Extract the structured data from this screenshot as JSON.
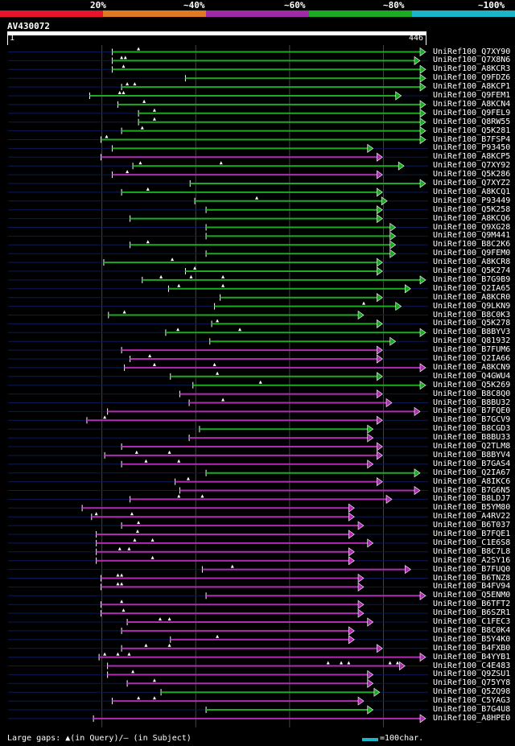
{
  "legend": [
    {
      "label": "20%",
      "color": "#e8142d"
    },
    {
      "label": "~40%",
      "color": "#e07a22"
    },
    {
      "label": "~60%",
      "color": "#9e2ca6"
    },
    {
      "label": "~80%",
      "color": "#1bab22"
    },
    {
      "label": "~100%",
      "color": "#1ab6c8"
    }
  ],
  "query": {
    "id": "AV430072",
    "start": "1",
    "end": "446",
    "length": 446
  },
  "colors": {
    "green": "#1bab22",
    "magenta": "#b02cb5",
    "trackline": "#0b1a55",
    "grid": "#444444"
  },
  "hits": [
    {
      "name": "UniRef100_Q7XY90",
      "start": 112,
      "end": 446,
      "color": "green",
      "gaps": [
        140
      ]
    },
    {
      "name": "UniRef100_Q7X8N6",
      "start": 112,
      "end": 440,
      "color": "green",
      "gaps": [
        122,
        126
      ]
    },
    {
      "name": "UniRef100_A8KCR3",
      "start": 112,
      "end": 446,
      "color": "green",
      "gaps": [
        124
      ]
    },
    {
      "name": "UniRef100_Q9FDZ6",
      "start": 190,
      "end": 446,
      "color": "green",
      "gaps": []
    },
    {
      "name": "UniRef100_A8KCP1",
      "start": 122,
      "end": 446,
      "color": "green",
      "gaps": [
        128,
        136
      ]
    },
    {
      "name": "UniRef100_Q9FEM1",
      "start": 88,
      "end": 420,
      "color": "green",
      "gaps": [
        120,
        124
      ]
    },
    {
      "name": "UniRef100_A8KCN4",
      "start": 118,
      "end": 446,
      "color": "green",
      "gaps": [
        146
      ]
    },
    {
      "name": "UniRef100_Q9FEL9",
      "start": 140,
      "end": 446,
      "color": "green",
      "gaps": [
        157
      ]
    },
    {
      "name": "UniRef100_Q8RW55",
      "start": 140,
      "end": 446,
      "color": "green",
      "gaps": [
        157
      ]
    },
    {
      "name": "UniRef100_Q5K281",
      "start": 122,
      "end": 446,
      "color": "green",
      "gaps": [
        144
      ]
    },
    {
      "name": "UniRef100_B7FSP4",
      "start": 100,
      "end": 446,
      "color": "green",
      "gaps": [
        106
      ]
    },
    {
      "name": "UniRef100_P93450",
      "start": 112,
      "end": 390,
      "color": "green",
      "gaps": []
    },
    {
      "name": "UniRef100_A8KCP5",
      "start": 100,
      "end": 400,
      "color": "magenta",
      "gaps": []
    },
    {
      "name": "UniRef100_Q7XY92",
      "start": 134,
      "end": 423,
      "color": "green",
      "gaps": [
        142,
        228
      ]
    },
    {
      "name": "UniRef100_Q5K286",
      "start": 112,
      "end": 400,
      "color": "magenta",
      "gaps": [
        128
      ]
    },
    {
      "name": "UniRef100_Q7XYZ2",
      "start": 195,
      "end": 446,
      "color": "green",
      "gaps": []
    },
    {
      "name": "UniRef100_A8KCQ1",
      "start": 122,
      "end": 400,
      "color": "green",
      "gaps": [
        150
      ]
    },
    {
      "name": "UniRef100_P93449",
      "start": 200,
      "end": 405,
      "color": "green",
      "gaps": [
        266
      ]
    },
    {
      "name": "UniRef100_Q5K258",
      "start": 212,
      "end": 400,
      "color": "green",
      "gaps": []
    },
    {
      "name": "UniRef100_A8KCQ6",
      "start": 131,
      "end": 400,
      "color": "green",
      "gaps": []
    },
    {
      "name": "UniRef100_Q9XG28",
      "start": 212,
      "end": 414,
      "color": "green",
      "gaps": []
    },
    {
      "name": "UniRef100_Q9M441",
      "start": 212,
      "end": 414,
      "color": "green",
      "gaps": []
    },
    {
      "name": "UniRef100_B8C2K6",
      "start": 131,
      "end": 414,
      "color": "green",
      "gaps": [
        150
      ]
    },
    {
      "name": "UniRef100_Q9FEM0",
      "start": 212,
      "end": 414,
      "color": "green",
      "gaps": []
    },
    {
      "name": "UniRef100_A8KCR8",
      "start": 103,
      "end": 400,
      "color": "green",
      "gaps": [
        176
      ]
    },
    {
      "name": "UniRef100_Q5K274",
      "start": 190,
      "end": 400,
      "color": "green",
      "gaps": [
        200
      ]
    },
    {
      "name": "UniRef100_B7G9B9",
      "start": 144,
      "end": 446,
      "color": "green",
      "gaps": [
        164,
        196,
        230
      ]
    },
    {
      "name": "UniRef100_Q2IA65",
      "start": 172,
      "end": 430,
      "color": "green",
      "gaps": [
        183,
        230
      ]
    },
    {
      "name": "UniRef100_A8KCR0",
      "start": 227,
      "end": 400,
      "color": "green",
      "gaps": []
    },
    {
      "name": "UniRef100_Q9LKN9",
      "start": 221,
      "end": 420,
      "color": "green",
      "gaps": [
        380
      ]
    },
    {
      "name": "UniRef100_B8C0K3",
      "start": 108,
      "end": 380,
      "color": "green",
      "gaps": [
        125
      ]
    },
    {
      "name": "UniRef100_Q5K278",
      "start": 218,
      "end": 400,
      "color": "green",
      "gaps": [
        224
      ]
    },
    {
      "name": "UniRef100_B8BYV3",
      "start": 169,
      "end": 446,
      "color": "green",
      "gaps": [
        182,
        248
      ]
    },
    {
      "name": "UniRef100_Q81932",
      "start": 216,
      "end": 414,
      "color": "green",
      "gaps": []
    },
    {
      "name": "UniRef100_B7FUM6",
      "start": 122,
      "end": 400,
      "color": "magenta",
      "gaps": []
    },
    {
      "name": "UniRef100_Q2IA66",
      "start": 131,
      "end": 400,
      "color": "magenta",
      "gaps": [
        152
      ]
    },
    {
      "name": "UniRef100_A8KCN9",
      "start": 125,
      "end": 446,
      "color": "magenta",
      "gaps": [
        157,
        221
      ]
    },
    {
      "name": "UniRef100_Q4GWU4",
      "start": 174,
      "end": 400,
      "color": "green",
      "gaps": [
        224
      ]
    },
    {
      "name": "UniRef100_Q5K269",
      "start": 198,
      "end": 446,
      "color": "green",
      "gaps": [
        270
      ]
    },
    {
      "name": "UniRef100_B8C8Q0",
      "start": 184,
      "end": 400,
      "color": "magenta",
      "gaps": []
    },
    {
      "name": "UniRef100_B8BU32",
      "start": 194,
      "end": 410,
      "color": "magenta",
      "gaps": [
        230
      ]
    },
    {
      "name": "UniRef100_B7FQE0",
      "start": 107,
      "end": 440,
      "color": "magenta",
      "gaps": []
    },
    {
      "name": "UniRef100_B7GCV9",
      "start": 85,
      "end": 400,
      "color": "magenta",
      "gaps": [
        104
      ]
    },
    {
      "name": "UniRef100_B8CGD3",
      "start": 205,
      "end": 390,
      "color": "green",
      "gaps": []
    },
    {
      "name": "UniRef100_B8BU33",
      "start": 194,
      "end": 390,
      "color": "magenta",
      "gaps": []
    },
    {
      "name": "UniRef100_Q2TLM8",
      "start": 122,
      "end": 400,
      "color": "magenta",
      "gaps": []
    },
    {
      "name": "UniRef100_B8BYV4",
      "start": 104,
      "end": 400,
      "color": "magenta",
      "gaps": [
        138,
        173
      ]
    },
    {
      "name": "UniRef100_B7GAS4",
      "start": 122,
      "end": 390,
      "color": "magenta",
      "gaps": [
        148,
        183
      ]
    },
    {
      "name": "UniRef100_Q2IA67",
      "start": 212,
      "end": 440,
      "color": "green",
      "gaps": []
    },
    {
      "name": "UniRef100_A8IKC6",
      "start": 179,
      "end": 400,
      "color": "magenta",
      "gaps": [
        193
      ]
    },
    {
      "name": "UniRef100_B7G6N5",
      "start": 184,
      "end": 440,
      "color": "magenta",
      "gaps": []
    },
    {
      "name": "UniRef100_B8LDJ7",
      "start": 131,
      "end": 410,
      "color": "magenta",
      "gaps": [
        183,
        208
      ]
    },
    {
      "name": "UniRef100_B5YM80",
      "start": 80,
      "end": 370,
      "color": "magenta",
      "gaps": []
    },
    {
      "name": "UniRef100_A4RV22",
      "start": 90,
      "end": 370,
      "color": "magenta",
      "gaps": [
        95,
        133
      ]
    },
    {
      "name": "UniRef100_B6T037",
      "start": 122,
      "end": 380,
      "color": "magenta",
      "gaps": [
        140
      ]
    },
    {
      "name": "UniRef100_B7FQE1",
      "start": 95,
      "end": 370,
      "color": "magenta",
      "gaps": [
        139
      ]
    },
    {
      "name": "UniRef100_C1E6S8",
      "start": 95,
      "end": 390,
      "color": "magenta",
      "gaps": [
        136,
        155
      ]
    },
    {
      "name": "UniRef100_B8C7L8",
      "start": 95,
      "end": 370,
      "color": "magenta",
      "gaps": [
        120,
        130
      ]
    },
    {
      "name": "UniRef100_A2SY16",
      "start": 95,
      "end": 370,
      "color": "magenta",
      "gaps": [
        155
      ]
    },
    {
      "name": "UniRef100_B7FUQ0",
      "start": 208,
      "end": 430,
      "color": "magenta",
      "gaps": [
        240
      ]
    },
    {
      "name": "UniRef100_B6TNZ8",
      "start": 100,
      "end": 380,
      "color": "magenta",
      "gaps": [
        118,
        122
      ]
    },
    {
      "name": "UniRef100_B4FV94",
      "start": 100,
      "end": 380,
      "color": "magenta",
      "gaps": [
        118,
        122
      ]
    },
    {
      "name": "UniRef100_Q5ENM0",
      "start": 212,
      "end": 446,
      "color": "magenta",
      "gaps": []
    },
    {
      "name": "UniRef100_B6TFT2",
      "start": 100,
      "end": 380,
      "color": "magenta",
      "gaps": [
        122
      ]
    },
    {
      "name": "UniRef100_B6SZR1",
      "start": 100,
      "end": 380,
      "color": "magenta",
      "gaps": [
        124
      ]
    },
    {
      "name": "UniRef100_C1FEC3",
      "start": 128,
      "end": 390,
      "color": "magenta",
      "gaps": [
        163,
        173
      ]
    },
    {
      "name": "UniRef100_B8C0K4",
      "start": 122,
      "end": 370,
      "color": "magenta",
      "gaps": []
    },
    {
      "name": "UniRef100_B5Y4K0",
      "start": 174,
      "end": 370,
      "color": "magenta",
      "gaps": [
        224
      ]
    },
    {
      "name": "UniRef100_B4FXB0",
      "start": 122,
      "end": 400,
      "color": "magenta",
      "gaps": [
        148,
        173
      ]
    },
    {
      "name": "UniRef100_B4YYB1",
      "start": 98,
      "end": 446,
      "color": "magenta",
      "gaps": [
        104,
        118,
        130
      ]
    },
    {
      "name": "UniRef100_C4E483",
      "start": 107,
      "end": 424,
      "color": "magenta",
      "gaps": [
        342,
        356,
        364,
        408,
        416
      ]
    },
    {
      "name": "UniRef100_Q9ZSU1",
      "start": 107,
      "end": 390,
      "color": "magenta",
      "gaps": [
        134
      ]
    },
    {
      "name": "UniRef100_Q75YY8",
      "start": 128,
      "end": 390,
      "color": "magenta",
      "gaps": [
        157
      ]
    },
    {
      "name": "UniRef100_Q5ZQ98",
      "start": 164,
      "end": 397,
      "color": "green",
      "gaps": []
    },
    {
      "name": "UniRef100_C5YAG3",
      "start": 112,
      "end": 380,
      "color": "magenta",
      "gaps": [
        140,
        157
      ]
    },
    {
      "name": "UniRef100_B7G4U8",
      "start": 212,
      "end": 390,
      "color": "green",
      "gaps": []
    },
    {
      "name": "UniRef100_A8HPE0",
      "start": 92,
      "end": 446,
      "color": "magenta",
      "gaps": []
    }
  ],
  "footer": {
    "gaps_label": "Large gaps: ▲(in Query)/– (in Subject)",
    "scale_label": "=100char."
  }
}
